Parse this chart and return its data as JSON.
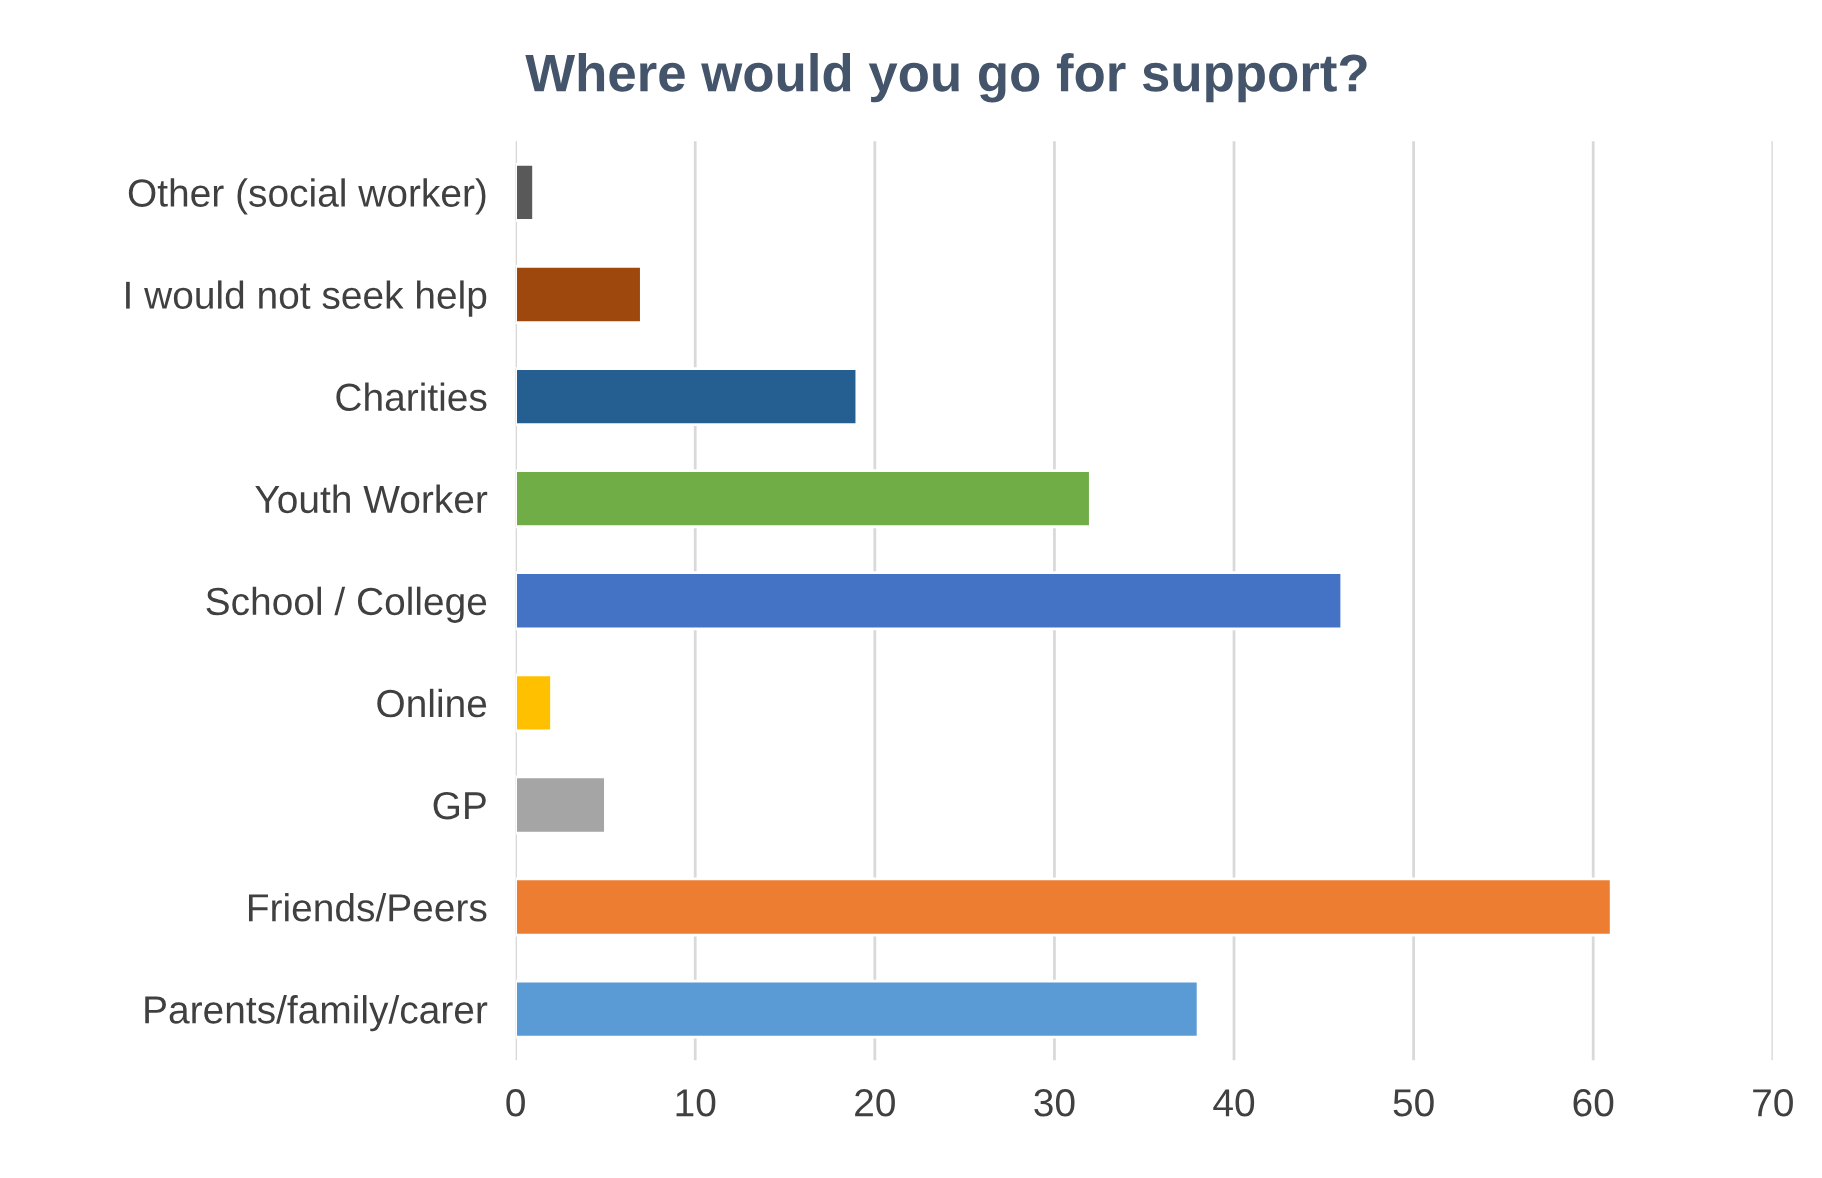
{
  "chart_data": {
    "type": "bar",
    "orientation": "horizontal",
    "title": "Where would you go for support?",
    "categories": [
      "Other (social worker)",
      "I would not seek help",
      "Charities",
      "Youth Worker",
      "School / College",
      "Online",
      "GP",
      "Friends/Peers",
      "Parents/family/carer"
    ],
    "values": [
      1,
      7,
      19,
      32,
      46,
      2,
      5,
      61,
      38
    ],
    "colors": [
      "#595959",
      "#9e480e",
      "#255e91",
      "#70ad47",
      "#4472c4",
      "#ffc000",
      "#a5a5a5",
      "#ed7d31",
      "#5b9bd5"
    ],
    "xlim": [
      0,
      70
    ],
    "xticks": [
      0,
      10,
      20,
      30,
      40,
      50,
      60,
      70
    ],
    "grid": "x",
    "legend": false
  }
}
